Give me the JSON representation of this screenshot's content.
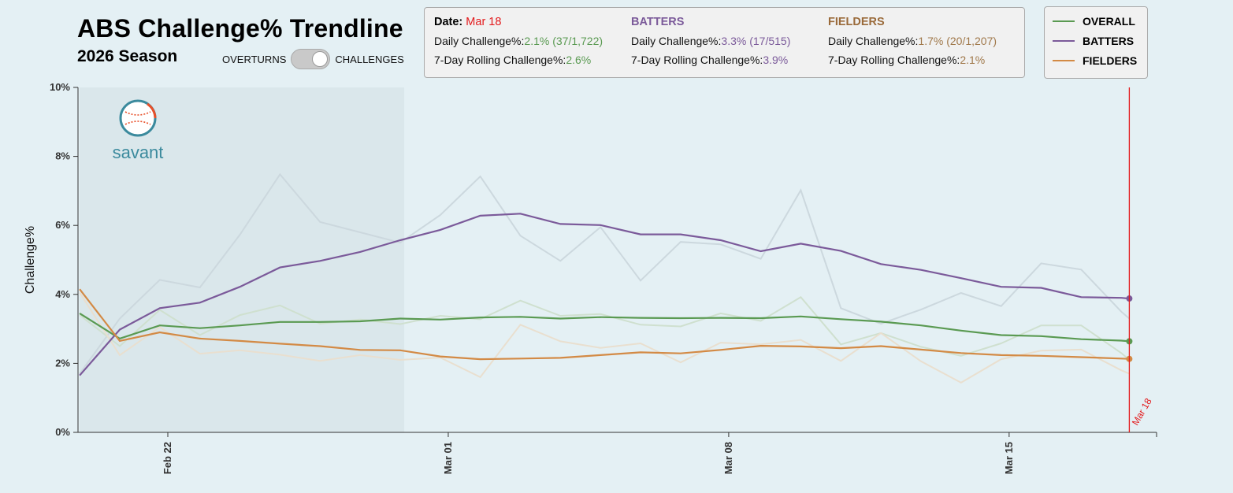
{
  "header": {
    "title": "ABS Challenge% Trendline",
    "subtitle": "2026 Season",
    "toggle_left": "OVERTURNS",
    "toggle_right": "CHALLENGES"
  },
  "info": {
    "date_label": "Date:",
    "date_value": "Mar 18",
    "overall": {
      "daily_label": "Daily Challenge%:",
      "daily_value": "2.1% (37/1,722)",
      "rolling_label": "7-Day Rolling Challenge%:",
      "rolling_value": "2.6%"
    },
    "batters": {
      "header": "BATTERS",
      "daily_label": "Daily Challenge%:",
      "daily_value": "3.3% (17/515)",
      "rolling_label": "7-Day Rolling Challenge%:",
      "rolling_value": "3.9%"
    },
    "fielders": {
      "header": "FIELDERS",
      "daily_label": "Daily Challenge%:",
      "daily_value": "1.7% (20/1,207)",
      "rolling_label": "7-Day Rolling Challenge%:",
      "rolling_value": "2.1%"
    }
  },
  "logo_text": "savant",
  "colors": {
    "overall": "#5a9a52",
    "batters": "#7b5a9a",
    "fielders": "#d38a45",
    "marker": "#e31a1c",
    "daily_gray": "#c8d4da"
  },
  "chart_data": {
    "type": "line",
    "title": "ABS Challenge% Trendline",
    "ylabel": "Challenge%",
    "ylim": [
      0,
      10
    ],
    "yticks": [
      "0%",
      "2%",
      "4%",
      "6%",
      "8%",
      "10%"
    ],
    "xticks": [
      {
        "label": "Feb 22",
        "day": 3
      },
      {
        "label": "Mar 01",
        "day": 10
      },
      {
        "label": "Mar 08",
        "day": 17
      },
      {
        "label": "Mar 15",
        "day": 24
      }
    ],
    "x_start_day": 0.8,
    "x_end_day": 27,
    "shaded_range_days": [
      0.8,
      8.9
    ],
    "marker_label": "Mar 18",
    "marker_day": 27,
    "legend": [
      "OVERALL",
      "BATTERS",
      "FIELDERS"
    ],
    "x": [
      0.8,
      1.8,
      2.8,
      3.8,
      4.8,
      5.8,
      6.8,
      7.8,
      8.8,
      9.8,
      10.8,
      11.8,
      12.8,
      13.8,
      14.8,
      15.8,
      16.8,
      17.8,
      18.8,
      19.8,
      20.8,
      21.8,
      22.8,
      23.8,
      24.8,
      25.8,
      26.8,
      27
    ],
    "series": [
      {
        "name": "OVERALL",
        "kind": "rolling",
        "values": [
          3.45,
          2.72,
          3.1,
          3.02,
          3.1,
          3.2,
          3.2,
          3.22,
          3.3,
          3.27,
          3.33,
          3.35,
          3.3,
          3.34,
          3.32,
          3.31,
          3.32,
          3.31,
          3.36,
          3.28,
          3.21,
          3.1,
          2.95,
          2.82,
          2.79,
          2.7,
          2.66,
          2.64
        ]
      },
      {
        "name": "BATTERS",
        "kind": "rolling",
        "values": [
          1.65,
          2.98,
          3.6,
          3.76,
          4.22,
          4.78,
          4.97,
          5.23,
          5.57,
          5.87,
          6.28,
          6.34,
          6.04,
          6.01,
          5.74,
          5.74,
          5.57,
          5.25,
          5.47,
          5.26,
          4.88,
          4.71,
          4.47,
          4.22,
          4.19,
          3.92,
          3.9,
          3.88
        ]
      },
      {
        "name": "FIELDERS",
        "kind": "rolling",
        "values": [
          4.15,
          2.65,
          2.9,
          2.72,
          2.65,
          2.57,
          2.5,
          2.39,
          2.38,
          2.2,
          2.12,
          2.14,
          2.16,
          2.24,
          2.32,
          2.29,
          2.39,
          2.51,
          2.49,
          2.44,
          2.5,
          2.4,
          2.3,
          2.24,
          2.22,
          2.18,
          2.14,
          2.13
        ]
      },
      {
        "name": "BATTERS DAILY",
        "kind": "daily",
        "values": [
          1.7,
          3.3,
          4.42,
          4.2,
          5.73,
          7.48,
          6.1,
          5.8,
          5.5,
          6.3,
          7.42,
          5.7,
          4.97,
          5.95,
          4.4,
          5.52,
          5.45,
          5.03,
          7.02,
          3.6,
          3.15,
          3.56,
          4.04,
          3.66,
          4.9,
          4.72,
          3.5,
          3.3
        ]
      },
      {
        "name": "OVERALL DAILY",
        "kind": "daily",
        "values": [
          3.4,
          2.5,
          3.55,
          2.82,
          3.4,
          3.68,
          3.15,
          3.27,
          3.14,
          3.38,
          3.28,
          3.82,
          3.38,
          3.43,
          3.12,
          3.07,
          3.45,
          3.23,
          3.92,
          2.55,
          2.88,
          2.48,
          2.22,
          2.58,
          3.1,
          3.1,
          2.3,
          2.1
        ]
      },
      {
        "name": "FIELDERS DAILY",
        "kind": "daily",
        "values": [
          4.05,
          2.24,
          3.05,
          2.28,
          2.38,
          2.25,
          2.07,
          2.24,
          2.1,
          2.17,
          1.6,
          3.12,
          2.64,
          2.45,
          2.58,
          2.03,
          2.6,
          2.55,
          2.68,
          2.07,
          2.88,
          2.06,
          1.44,
          2.12,
          2.37,
          2.4,
          1.8,
          1.7
        ]
      }
    ]
  }
}
